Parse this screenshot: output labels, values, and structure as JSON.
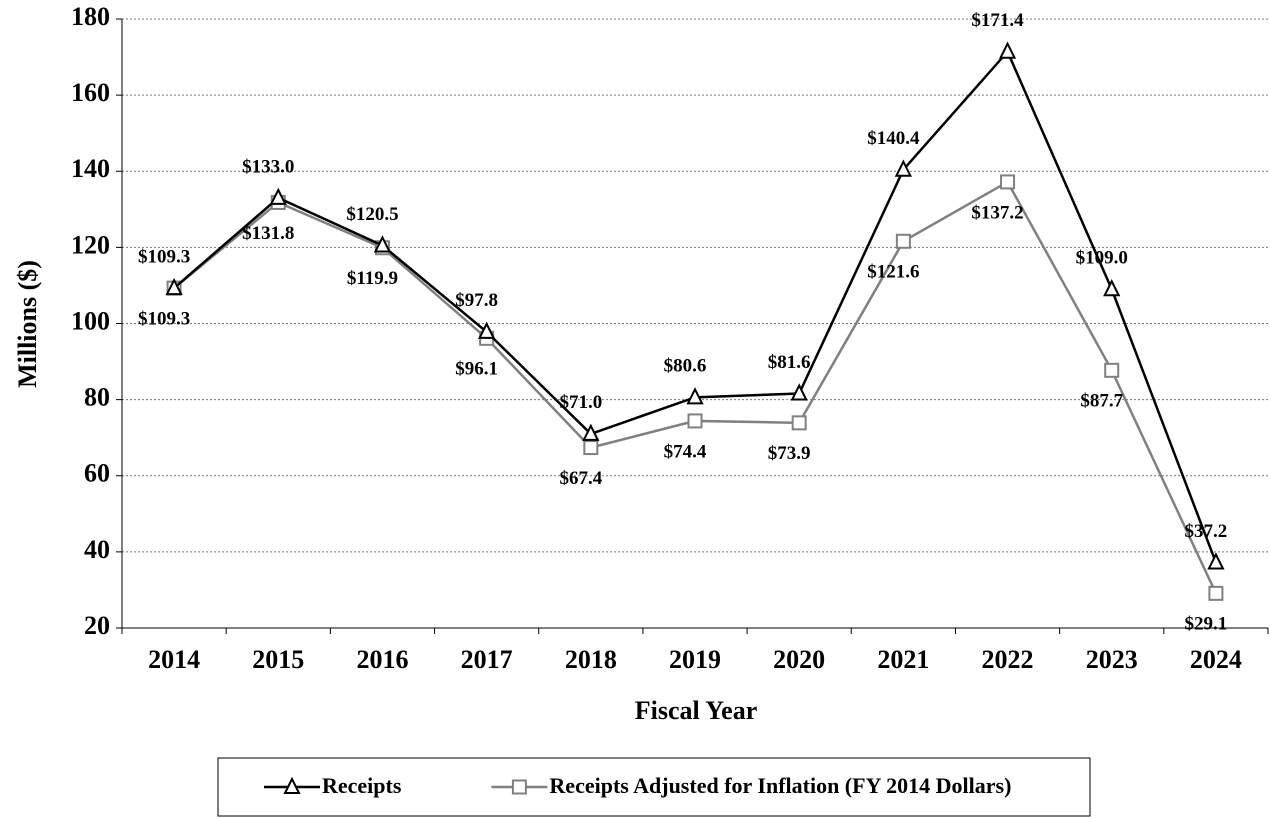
{
  "chart_data": {
    "type": "line",
    "x_label": "Fiscal Year",
    "y_label": "Millions ($)",
    "categories": [
      "2014",
      "2015",
      "2016",
      "2017",
      "2018",
      "2019",
      "2020",
      "2021",
      "2022",
      "2023",
      "2024"
    ],
    "series": [
      {
        "name": "Receipts",
        "color": "#000000",
        "marker": "triangle",
        "values": [
          109.3,
          133.0,
          120.5,
          97.8,
          71.0,
          80.6,
          81.6,
          140.4,
          171.4,
          109.0,
          37.2
        ],
        "value_labels": [
          "$109.3",
          "$133.0",
          "$120.5",
          "$97.8",
          "$71.0",
          "$80.6",
          "$81.6",
          "$140.4",
          "$171.4",
          "$109.0",
          "$37.2"
        ]
      },
      {
        "name": "Receipts Adjusted for Inflation (FY 2014 Dollars)",
        "color": "#808080",
        "marker": "square",
        "values": [
          109.3,
          131.8,
          119.9,
          96.1,
          67.4,
          74.4,
          73.9,
          121.6,
          137.2,
          87.7,
          29.1
        ],
        "value_labels": [
          "$109.3",
          "$131.8",
          "$119.9",
          "$96.1",
          "$67.4",
          "$74.4",
          "$73.9",
          "$121.6",
          "$137.2",
          "$87.7",
          "$29.1"
        ]
      }
    ],
    "ylim": [
      20,
      180
    ],
    "yticks": [
      20,
      40,
      60,
      80,
      100,
      120,
      140,
      160,
      180
    ],
    "grid": true,
    "legend": "bottom"
  }
}
